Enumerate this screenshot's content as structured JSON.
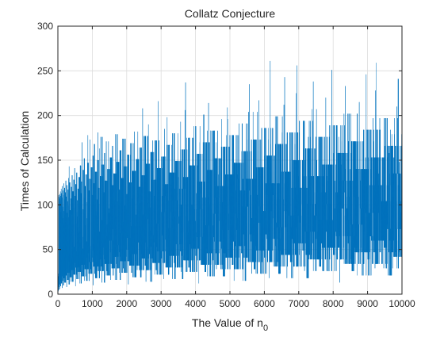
{
  "chart_data": {
    "type": "line",
    "title": "Collatz Conjecture",
    "xlabel": "The Value of n",
    "xlabel_subscript": "0",
    "ylabel": "Times of Calculation",
    "xlim": [
      0,
      10000
    ],
    "ylim": [
      0,
      300
    ],
    "xticks": [
      "0",
      "1000",
      "2000",
      "3000",
      "4000",
      "5000",
      "6000",
      "7000",
      "8000",
      "9000",
      "10000"
    ],
    "yticks": [
      "0",
      "50",
      "100",
      "150",
      "200",
      "250",
      "300"
    ],
    "grid": true,
    "legend": "none",
    "series": [
      {
        "color": "#0072BD",
        "x_start": 1,
        "x_end": 10000,
        "x_step": 1,
        "description": "Collatz stopping steps for each starting value n0 from 1 to 10000; dense band roughly 20 to 180, peak near 262 at n0 of about 6171"
      }
    ]
  }
}
